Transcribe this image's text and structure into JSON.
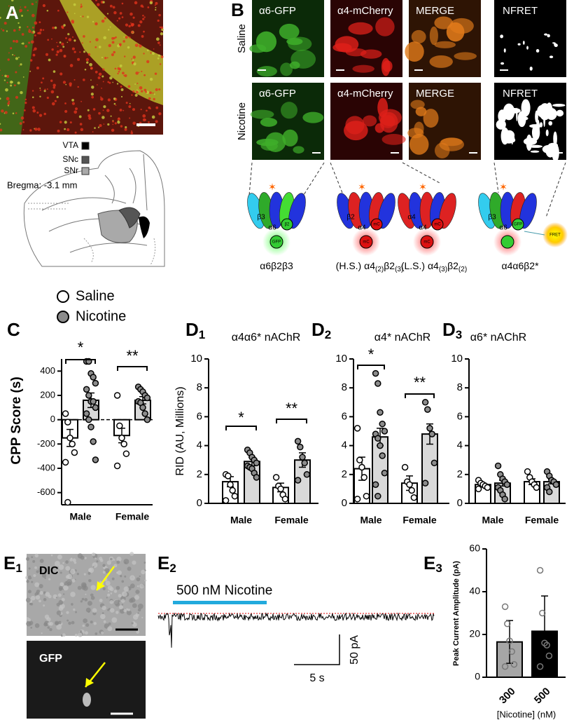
{
  "figure": {
    "labels": {
      "a": "A",
      "b": "B",
      "c": "C",
      "d1": {
        "letter": "D",
        "sub": "1"
      },
      "d2": {
        "letter": "D",
        "sub": "2"
      },
      "d3": {
        "letter": "D",
        "sub": "3"
      },
      "e1": {
        "letter": "E",
        "sub": "1"
      },
      "e2": {
        "letter": "E",
        "sub": "2"
      },
      "e3": {
        "letter": "E",
        "sub": "3"
      }
    },
    "panel_a": {
      "regions": [
        "VTA",
        "SNc",
        "SNr"
      ],
      "bregma": "Bregma: -3.1 mm"
    },
    "panel_b": {
      "rows": [
        "Saline",
        "Nicotine"
      ],
      "columns": [
        [
          "α6-GFP",
          "α4-mCherry",
          "MERGE",
          "NFRET"
        ],
        [
          "α6-GFP",
          "α4-mCherry",
          "MERGE",
          "NFRET"
        ]
      ],
      "cartoons": [
        {
          "subunits": [
            "β3",
            "α6",
            "β2",
            "GFP"
          ],
          "caption": [
            "α6β2β3"
          ]
        },
        {
          "subunits": [
            "β2",
            "α4",
            "mC",
            "mC"
          ],
          "caption": [
            "(H.S.) α4",
            "(2)",
            "β2",
            "(3)"
          ]
        },
        {
          "subunits": [
            "α4",
            "α4",
            "mC",
            "mC"
          ],
          "caption": [
            "(L.S.) α4",
            "(3)",
            "β2",
            "(2)"
          ]
        },
        {
          "subunits": [
            "β3",
            "α6",
            "GFP",
            "FRET"
          ],
          "caption": [
            "α4α6β2*"
          ]
        }
      ]
    },
    "panel_e": {
      "dic": "DIC",
      "gfp": "GFP",
      "drug": "500 nM Nicotine",
      "time_scale": "5 s",
      "current_scale": "50 pA"
    }
  },
  "chart_data": [
    {
      "type": "bar",
      "y_label": "CPP Score (s)",
      "categories": [
        "Male",
        "Female"
      ],
      "ylim": [
        -700,
        500
      ],
      "yticks": [
        400,
        200,
        0,
        -200,
        -400,
        -600
      ],
      "significance": [
        "*",
        "**"
      ],
      "series": [
        {
          "name": "Saline",
          "color": "#ffffff",
          "point_color": "#ffffff",
          "values": [
            -150,
            -130
          ],
          "errors": [
            70,
            60
          ],
          "points": [
            [
              50,
              -20,
              -150,
              -200,
              -270,
              -350,
              -680
            ],
            [
              200,
              -50,
              -150,
              -200,
              -280,
              -380
            ]
          ]
        },
        {
          "name": "Nicotine",
          "color": "#d9d9d9",
          "point_color": "#8c8c8c",
          "values": [
            160,
            160
          ],
          "errors": [
            60,
            30
          ],
          "points": [
            [
              480,
              480,
              380,
              350,
              300,
              250,
              200,
              150,
              150,
              100,
              50,
              0,
              -60,
              -180,
              -330
            ],
            [
              270,
              250,
              230,
              200,
              180,
              150,
              140,
              100,
              50,
              0
            ]
          ]
        }
      ]
    },
    {
      "type": "bar",
      "title": "α4α6* nAChR",
      "y_label": "RID (AU, Millions)",
      "categories": [
        "Male",
        "Female"
      ],
      "ylim": [
        0,
        10
      ],
      "yticks": [
        0,
        2,
        4,
        6,
        8,
        10
      ],
      "significance": [
        "*",
        "**"
      ],
      "series": [
        {
          "color": "#ffffff",
          "point_color": "#ffffff",
          "values": [
            1.5,
            1.1
          ],
          "errors": [
            0.35,
            0.3
          ],
          "points": [
            [
              2,
              1.9,
              1.3,
              0.9,
              0.5,
              0.2
            ],
            [
              1.8,
              1.2,
              1,
              0.6,
              0.3
            ]
          ]
        },
        {
          "color": "#d9d9d9",
          "point_color": "#8c8c8c",
          "values": [
            2.9,
            3
          ],
          "errors": [
            0.3,
            0.5
          ],
          "points": [
            [
              3.7,
              3.5,
              3.2,
              3,
              2.8,
              2.6,
              2.5,
              2.4,
              2.1,
              1.8
            ],
            [
              4.3,
              3.9,
              3.2,
              2.8,
              2,
              1.6
            ]
          ]
        }
      ]
    },
    {
      "type": "bar",
      "title": "α4* nAChR",
      "categories": [
        "Male",
        "Female"
      ],
      "ylim": [
        0,
        10
      ],
      "yticks": [
        0,
        2,
        4,
        6,
        8,
        10
      ],
      "significance": [
        "*",
        "**"
      ],
      "series": [
        {
          "color": "#ffffff",
          "point_color": "#ffffff",
          "values": [
            2.4,
            1.4
          ],
          "errors": [
            0.8,
            0.5
          ],
          "points": [
            [
              5.2,
              3,
              2.5,
              1.8,
              0.5,
              0.3
            ],
            [
              2.5,
              1.5,
              1.3,
              0.9,
              0.4
            ]
          ]
        },
        {
          "color": "#d9d9d9",
          "point_color": "#8c8c8c",
          "values": [
            4.6,
            4.8
          ],
          "errors": [
            0.6,
            0.7
          ],
          "points": [
            [
              9,
              8.3,
              6.3,
              5.5,
              5,
              4.8,
              4.5,
              4,
              3.3,
              2.1,
              1.3,
              0.5
            ],
            [
              7,
              6.5,
              5.2,
              4.8,
              2.8,
              1.4
            ]
          ]
        }
      ]
    },
    {
      "type": "bar",
      "title": "α6* nAChR",
      "categories": [
        "Male",
        "Female"
      ],
      "ylim": [
        0,
        10
      ],
      "yticks": [
        0,
        2,
        4,
        6,
        8,
        10
      ],
      "series": [
        {
          "color": "#ffffff",
          "point_color": "#ffffff",
          "values": [
            1.3,
            1.5
          ],
          "errors": [
            0.1,
            0.2
          ],
          "points": [
            [
              1.6,
              1.4,
              1.3,
              1.2,
              1.1,
              1
            ],
            [
              2.2,
              1.8,
              1.5,
              1.3,
              1.1
            ]
          ]
        },
        {
          "color": "#d9d9d9",
          "point_color": "#8c8c8c",
          "values": [
            1.4,
            1.5
          ],
          "errors": [
            0.2,
            0.15
          ],
          "points": [
            [
              2.6,
              2,
              1.7,
              1.5,
              1.3,
              1.1,
              0.9,
              0.6,
              0.3
            ],
            [
              2.2,
              1.9,
              1.6,
              1.5,
              1.3,
              1.1,
              0.8
            ]
          ]
        }
      ]
    },
    {
      "type": "bar",
      "y_label": "Peak Current Amplitude (pA)",
      "x_label": "[Nicotine] (nM)",
      "categories": [
        "300",
        "500"
      ],
      "ylim": [
        0,
        60
      ],
      "yticks": [
        0,
        20,
        40,
        60
      ],
      "series": [
        {
          "colors": [
            "#a6a6a6",
            "#000000"
          ],
          "point_color": "none",
          "values": [
            16.5,
            21.5
          ],
          "errors": [
            10,
            16.5
          ],
          "points": [
            [
              33,
              25,
              17,
              12,
              6,
              5
            ],
            [
              50,
              30,
              16,
              15,
              10,
              5
            ]
          ]
        }
      ]
    }
  ]
}
